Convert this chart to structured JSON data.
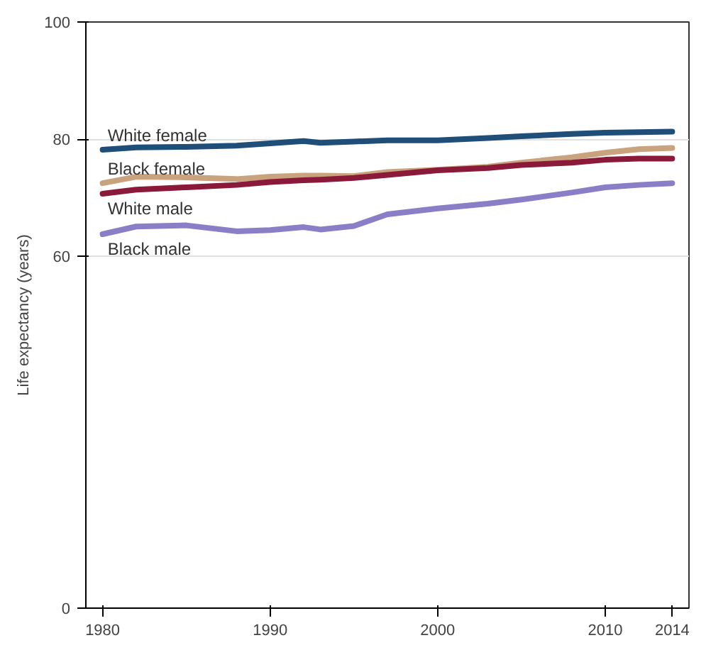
{
  "chart_data": {
    "type": "line",
    "ylabel": "Life expectancy (years)",
    "x": [
      1980,
      1982,
      1985,
      1988,
      1990,
      1992,
      1993,
      1995,
      1997,
      2000,
      2003,
      2005,
      2008,
      2010,
      2012,
      2014
    ],
    "series": [
      {
        "name": "White female",
        "color": "#1f4e79",
        "values": [
          78.2,
          78.6,
          78.7,
          78.9,
          79.3,
          79.7,
          79.4,
          79.6,
          79.8,
          79.8,
          80.2,
          80.5,
          80.9,
          81.1,
          81.2,
          81.3
        ]
      },
      {
        "name": "Black female",
        "color": "#c9a27e",
        "values": [
          72.5,
          73.6,
          73.5,
          73.2,
          73.6,
          73.8,
          73.8,
          73.7,
          74.4,
          74.8,
          75.3,
          76.0,
          76.9,
          77.7,
          78.3,
          78.5
        ]
      },
      {
        "name": "White male",
        "color": "#8b1a3a",
        "values": [
          70.7,
          71.4,
          71.8,
          72.2,
          72.7,
          73.0,
          73.1,
          73.4,
          73.9,
          74.7,
          75.1,
          75.6,
          76.0,
          76.5,
          76.7,
          76.7
        ]
      },
      {
        "name": "Black male",
        "color": "#8a7fc7",
        "values": [
          63.8,
          65.1,
          65.3,
          64.3,
          64.5,
          65.0,
          64.6,
          65.2,
          67.2,
          68.2,
          69.0,
          69.7,
          70.9,
          71.8,
          72.2,
          72.5
        ]
      }
    ],
    "xlim": [
      1979,
      2015
    ],
    "ylim": [
      0,
      100
    ],
    "xticks": [
      1980,
      1990,
      2000,
      2010,
      2014
    ],
    "yticks": [
      0,
      60,
      80,
      100
    ],
    "grid": "y",
    "line_style": "solid",
    "marker": "none"
  }
}
